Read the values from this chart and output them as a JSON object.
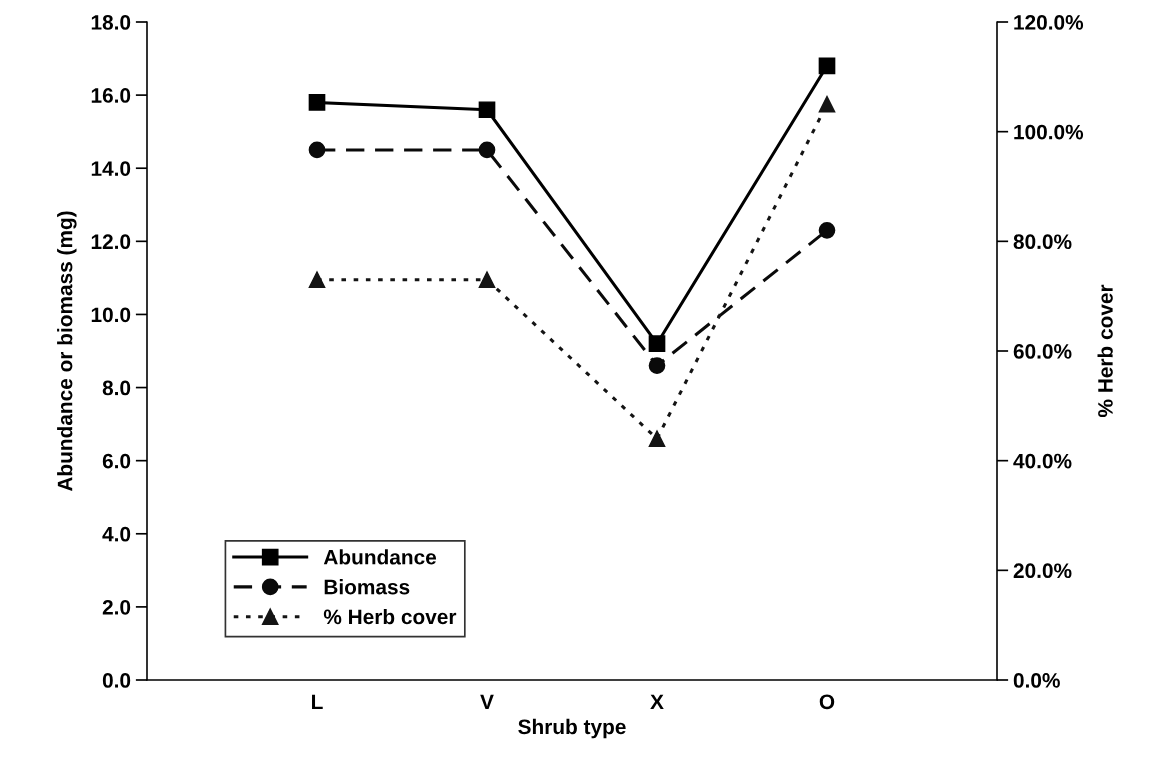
{
  "chart_data": {
    "type": "line",
    "xlabel": "Shrub type",
    "ylabel": "Abundance or biomass (mg)",
    "y2label": "% Herb cover",
    "categories": [
      "L",
      "V",
      "X",
      "O"
    ],
    "series": [
      {
        "name": "Abundance",
        "color": "#000000",
        "values": [
          15.8,
          15.6,
          9.2,
          16.8
        ],
        "marker": "square",
        "line_style": "solid"
      },
      {
        "name": "Biomass",
        "color": "#0a0a0a",
        "values": [
          14.5,
          14.5,
          8.6,
          12.3
        ],
        "marker": "circle",
        "line_style": "dashed"
      },
      {
        "name": "% Herb cover",
        "color": "#141414",
        "values": [
          73,
          73,
          44,
          105
        ],
        "marker": "triangle",
        "line_style": "dotted",
        "axis": "y2"
      }
    ],
    "ylim": [
      0,
      18
    ],
    "yticks": [
      {
        "value": 0,
        "label": "0.0"
      },
      {
        "value": 2,
        "label": "2.0"
      },
      {
        "value": 4,
        "label": "4.0"
      },
      {
        "value": 6,
        "label": "6.0"
      },
      {
        "value": 8,
        "label": "8.0"
      },
      {
        "value": 10,
        "label": "10.0"
      },
      {
        "value": 12,
        "label": "12.0"
      },
      {
        "value": 14,
        "label": "14.0"
      },
      {
        "value": 16,
        "label": "16.0"
      },
      {
        "value": 18,
        "label": "18.0"
      }
    ],
    "y2lim": [
      0,
      120
    ],
    "y2ticks": [
      {
        "value": 0,
        "label": "0.0%"
      },
      {
        "value": 20,
        "label": "20.0%"
      },
      {
        "value": 40,
        "label": "40.0%"
      },
      {
        "value": 60,
        "label": "60.0%"
      },
      {
        "value": 80,
        "label": "80.0%"
      },
      {
        "value": 100,
        "label": "100.0%"
      },
      {
        "value": 120,
        "label": "120.0%"
      }
    ],
    "grid": false,
    "legend": "bottom left"
  }
}
